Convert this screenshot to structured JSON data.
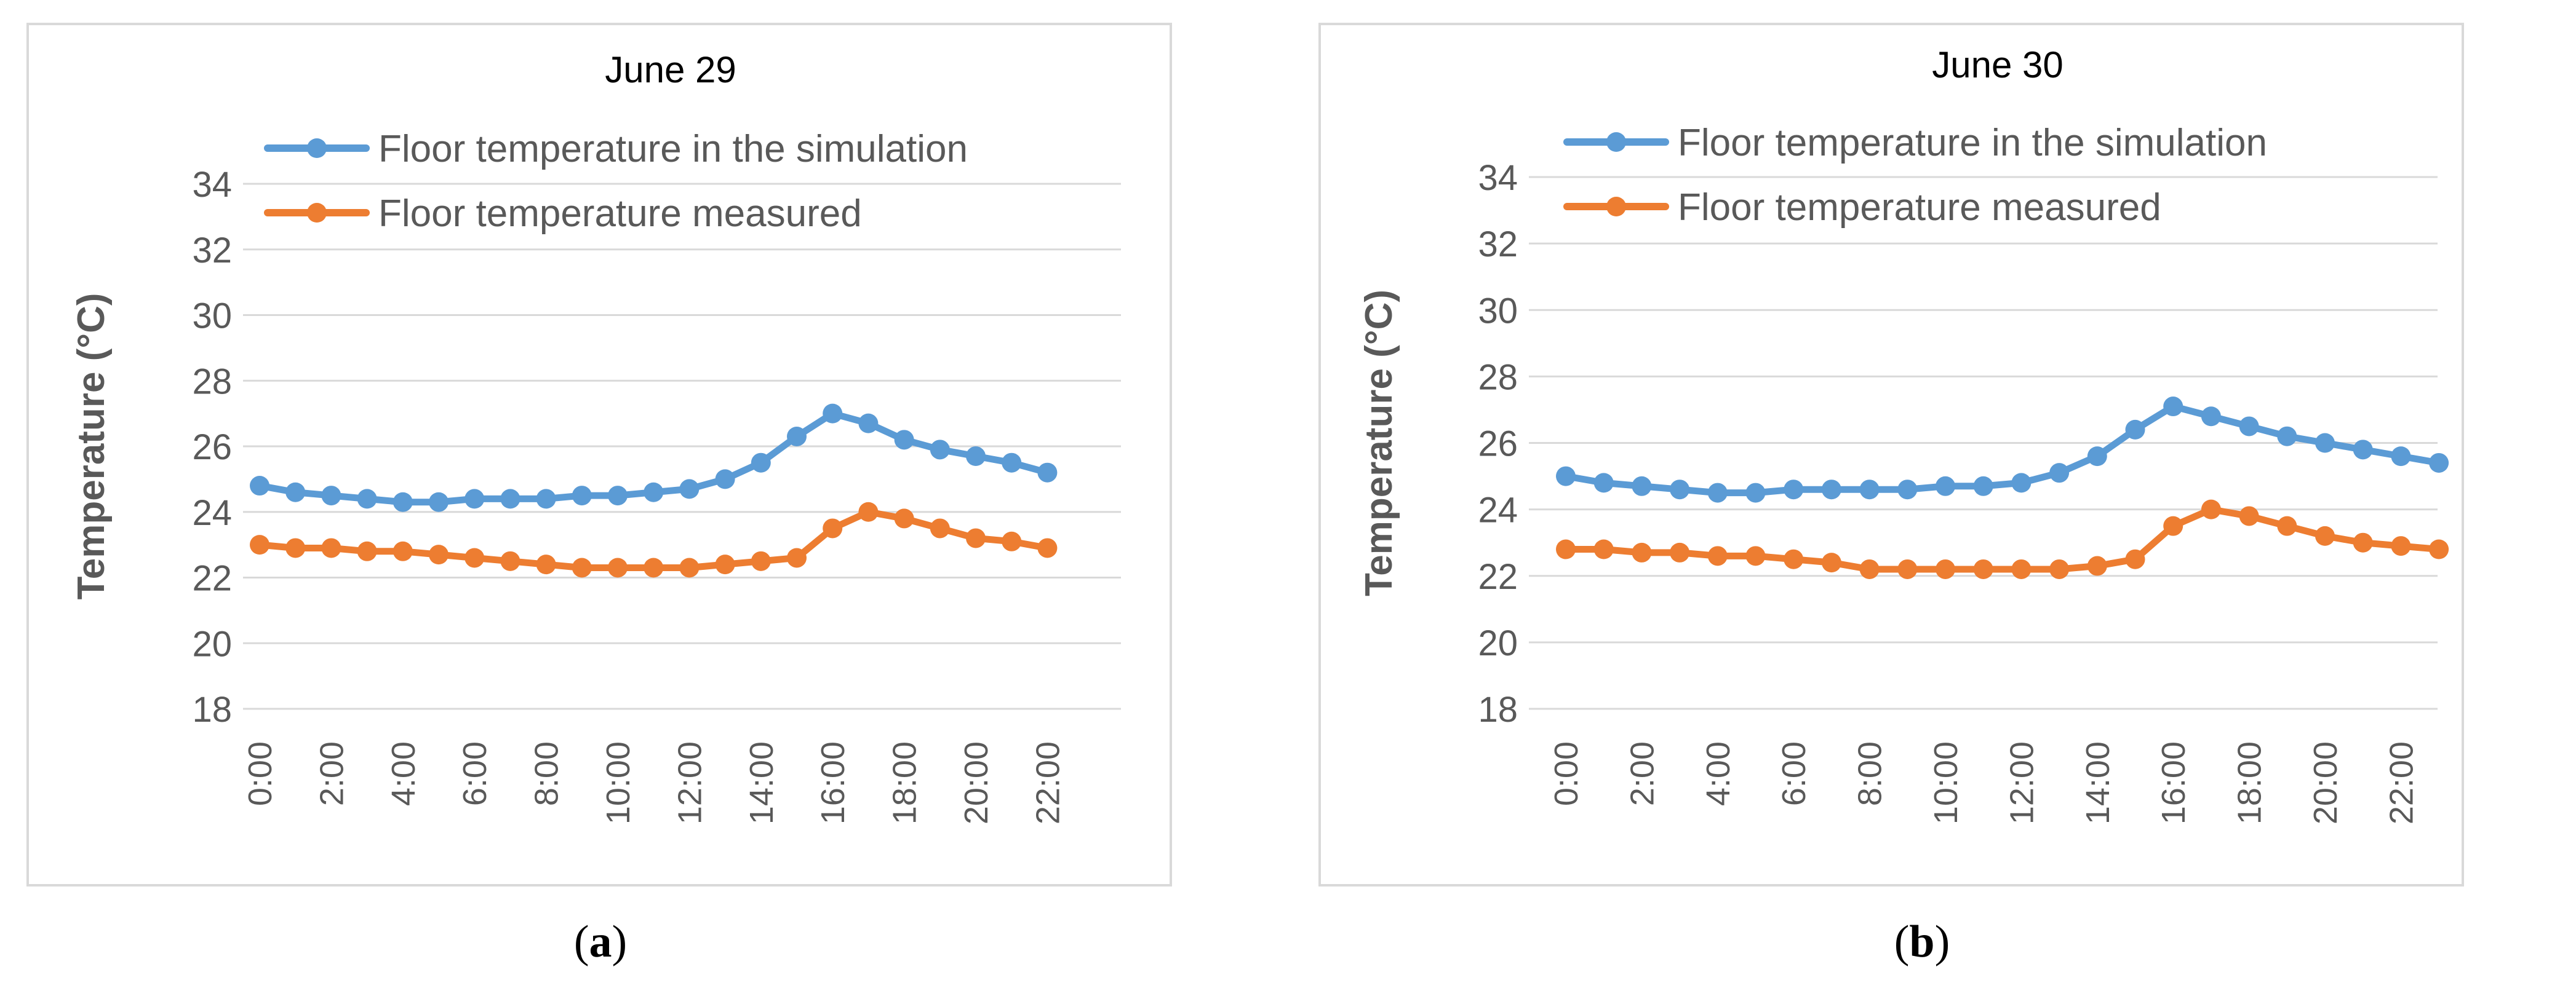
{
  "chart_data": [
    {
      "type": "line",
      "title": "June 29",
      "xlabel": "",
      "ylabel": "Temperature (°C)",
      "ylim": [
        18,
        34
      ],
      "yticks": [
        "18",
        "20",
        "22",
        "24",
        "26",
        "28",
        "30",
        "32",
        "34"
      ],
      "x": [
        "0:00",
        "1:00",
        "2:00",
        "3:00",
        "4:00",
        "5:00",
        "6:00",
        "7:00",
        "8:00",
        "9:00",
        "10:00",
        "11:00",
        "12:00",
        "13:00",
        "14:00",
        "15:00",
        "16:00",
        "17:00",
        "18:00",
        "19:00",
        "20:00",
        "21:00",
        "22:00"
      ],
      "xtick_labels": [
        "0:00",
        "2:00",
        "4:00",
        "6:00",
        "8:00",
        "10:00",
        "12:00",
        "14:00",
        "16:00",
        "18:00",
        "20:00",
        "22:00"
      ],
      "legend_position": "top",
      "series": [
        {
          "name": "Floor temperature in the simulation",
          "color": "#5b9bd5",
          "values": [
            24.8,
            24.6,
            24.5,
            24.4,
            24.3,
            24.3,
            24.4,
            24.4,
            24.4,
            24.5,
            24.5,
            24.6,
            24.7,
            25.0,
            25.5,
            26.3,
            27.0,
            26.7,
            26.2,
            25.9,
            25.7,
            25.5,
            25.2
          ]
        },
        {
          "name": "Floor temperature measured",
          "color": "#ed7d31",
          "values": [
            23.0,
            22.9,
            22.9,
            22.8,
            22.8,
            22.7,
            22.6,
            22.5,
            22.4,
            22.3,
            22.3,
            22.3,
            22.3,
            22.4,
            22.5,
            22.6,
            23.5,
            24.0,
            23.8,
            23.5,
            23.2,
            23.1,
            22.9
          ]
        }
      ]
    },
    {
      "type": "line",
      "title": "June 30",
      "xlabel": "",
      "ylabel": "Temperature (°C)",
      "ylim": [
        18,
        34
      ],
      "yticks": [
        "18",
        "20",
        "22",
        "24",
        "26",
        "28",
        "30",
        "32",
        "34"
      ],
      "x": [
        "0:00",
        "1:00",
        "2:00",
        "3:00",
        "4:00",
        "5:00",
        "6:00",
        "7:00",
        "8:00",
        "9:00",
        "10:00",
        "11:00",
        "12:00",
        "13:00",
        "14:00",
        "15:00",
        "16:00",
        "17:00",
        "18:00",
        "19:00",
        "20:00",
        "21:00",
        "22:00",
        "23:00"
      ],
      "xtick_labels": [
        "0:00",
        "2:00",
        "4:00",
        "6:00",
        "8:00",
        "10:00",
        "12:00",
        "14:00",
        "16:00",
        "18:00",
        "20:00",
        "22:00"
      ],
      "legend_position": "top",
      "series": [
        {
          "name": "Floor temperature in the simulation",
          "color": "#5b9bd5",
          "values": [
            25.0,
            24.8,
            24.7,
            24.6,
            24.5,
            24.5,
            24.6,
            24.6,
            24.6,
            24.6,
            24.7,
            24.7,
            24.8,
            25.1,
            25.6,
            26.4,
            27.1,
            26.8,
            26.5,
            26.2,
            26.0,
            25.8,
            25.6,
            25.4
          ]
        },
        {
          "name": "Floor temperature measured",
          "color": "#ed7d31",
          "values": [
            22.8,
            22.8,
            22.7,
            22.7,
            22.6,
            22.6,
            22.5,
            22.4,
            22.2,
            22.2,
            22.2,
            22.2,
            22.2,
            22.2,
            22.3,
            22.5,
            23.5,
            24.0,
            23.8,
            23.5,
            23.2,
            23.0,
            22.9,
            22.8
          ]
        }
      ]
    }
  ],
  "captions": [
    {
      "open": "(",
      "letter": "a",
      "close": ")"
    },
    {
      "open": "(",
      "letter": "b",
      "close": ")"
    }
  ]
}
